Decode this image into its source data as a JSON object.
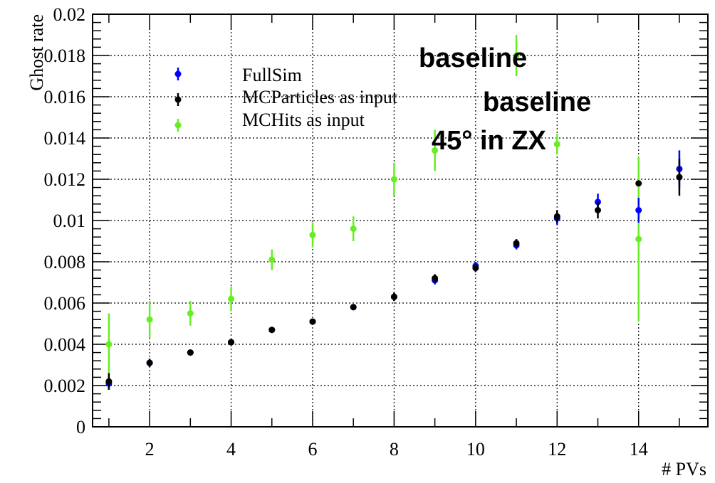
{
  "chart_data": {
    "type": "scatter",
    "xlabel": "# PVs",
    "ylabel": "Ghost rate",
    "xlim": [
      0.6,
      15.7
    ],
    "ylim": [
      0,
      0.02
    ],
    "grid": true,
    "legend_position": "top-left",
    "x_ticks": [
      "2",
      "4",
      "6",
      "8",
      "10",
      "12",
      "14"
    ],
    "y_ticks": [
      "0",
      "0.002",
      "0.004",
      "0.006",
      "0.008",
      "0.01",
      "0.012",
      "0.014",
      "0.016",
      "0.018",
      "0.02"
    ],
    "series": [
      {
        "name": "FullSim",
        "color": "#0000ff",
        "points": [
          {
            "x": 1,
            "y": 0.0021,
            "err": 0.0003
          },
          {
            "x": 2,
            "y": 0.0031,
            "err": 0.0002
          },
          {
            "x": 3,
            "y": 0.0036,
            "err": 0.0001
          },
          {
            "x": 4,
            "y": 0.0041,
            "err": 0.0001
          },
          {
            "x": 5,
            "y": 0.0047,
            "err": 0.0001
          },
          {
            "x": 6,
            "y": 0.0051,
            "err": 0.0001
          },
          {
            "x": 7,
            "y": 0.0058,
            "err": 0.0001
          },
          {
            "x": 8,
            "y": 0.0063,
            "err": 0.0002
          },
          {
            "x": 9,
            "y": 0.0071,
            "err": 0.0002
          },
          {
            "x": 10,
            "y": 0.0078,
            "err": 0.0002
          },
          {
            "x": 11,
            "y": 0.0088,
            "err": 0.0002
          },
          {
            "x": 12,
            "y": 0.0101,
            "err": 0.0003
          },
          {
            "x": 13,
            "y": 0.0109,
            "err": 0.0004
          },
          {
            "x": 14,
            "y": 0.0105,
            "err": 0.0006
          },
          {
            "x": 15,
            "y": 0.0125,
            "err": 0.0009
          }
        ]
      },
      {
        "name": "MCParticles as input",
        "color": "#000000",
        "points": [
          {
            "x": 1,
            "y": 0.0022,
            "err": 0.0004
          },
          {
            "x": 2,
            "y": 0.0031,
            "err": 0.0002
          },
          {
            "x": 3,
            "y": 0.0036,
            "err": 0.0001
          },
          {
            "x": 4,
            "y": 0.0041,
            "err": 0.0001
          },
          {
            "x": 5,
            "y": 0.0047,
            "err": 0.0001
          },
          {
            "x": 6,
            "y": 0.0051,
            "err": 0.0001
          },
          {
            "x": 7,
            "y": 0.0058,
            "err": 0.0001
          },
          {
            "x": 8,
            "y": 0.0063,
            "err": 0.0002
          },
          {
            "x": 9,
            "y": 0.0072,
            "err": 0.0002
          },
          {
            "x": 10,
            "y": 0.0077,
            "err": 0.0002
          },
          {
            "x": 11,
            "y": 0.0089,
            "err": 0.0002
          },
          {
            "x": 12,
            "y": 0.0102,
            "err": 0.0003
          },
          {
            "x": 13,
            "y": 0.0105,
            "err": 0.0004
          },
          {
            "x": 14,
            "y": 0.0118,
            "err": 0.0
          },
          {
            "x": 15,
            "y": 0.0121,
            "err": 0.0009
          }
        ]
      },
      {
        "name": "MCHits as input",
        "color": "#66ee22",
        "points": [
          {
            "x": 1,
            "y": 0.004,
            "err": 0.0015
          },
          {
            "x": 2,
            "y": 0.0052,
            "err": 0.0009
          },
          {
            "x": 3,
            "y": 0.0055,
            "err": 0.0006
          },
          {
            "x": 4,
            "y": 0.0062,
            "err": 0.0006
          },
          {
            "x": 5,
            "y": 0.0081,
            "err": 0.0005
          },
          {
            "x": 6,
            "y": 0.0093,
            "err": 0.0006
          },
          {
            "x": 7,
            "y": 0.0096,
            "err": 0.0006
          },
          {
            "x": 8,
            "y": 0.012,
            "err": 0.0008
          },
          {
            "x": 9,
            "y": 0.0134,
            "err": 0.001
          },
          {
            "x": 11,
            "y": 0.018,
            "err": 0.001
          },
          {
            "x": 12,
            "y": 0.0137,
            "err": 0.0005
          },
          {
            "x": 14,
            "y": 0.0091,
            "err": 0.004
          }
        ]
      }
    ],
    "annotations": [
      "baseline",
      "baseline",
      "45° in ZX"
    ]
  }
}
